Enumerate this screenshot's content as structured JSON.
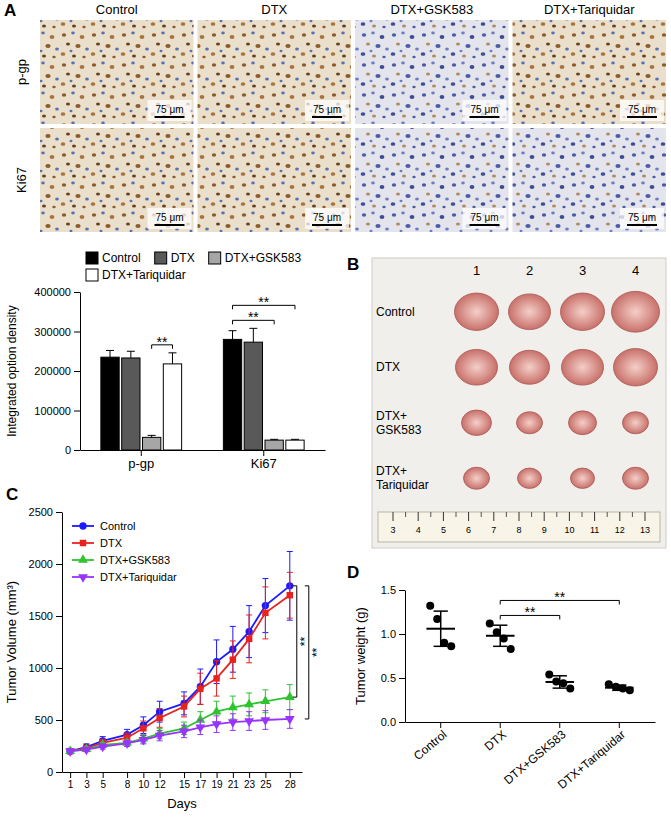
{
  "images": {
    "panel": "A",
    "columns": [
      "Control",
      "DTX",
      "DTX+GSK583",
      "DTX+Tariquidar"
    ],
    "rows": [
      "p-gp",
      "Ki67"
    ],
    "scale_bar": "75 μm"
  },
  "photo": {
    "panel": "B",
    "columns": [
      "1",
      "2",
      "3",
      "4"
    ],
    "rows": [
      "Control",
      "DTX",
      "DTX+GSK583",
      "DTX+Tariquidar"
    ],
    "ruler": [
      3,
      4,
      5,
      6,
      7,
      8,
      9,
      10,
      11,
      12,
      13
    ]
  },
  "chart_data": [
    {
      "type": "bar",
      "ylabel": "Integrated option density",
      "categories": [
        "p-gp",
        "Ki67"
      ],
      "series": [
        {
          "name": "Control",
          "color": "#000000",
          "values": [
            235000,
            280000
          ],
          "errors": [
            17000,
            22000
          ]
        },
        {
          "name": "DTX",
          "color": "#595959",
          "values": [
            233000,
            273000
          ],
          "errors": [
            17000,
            35000
          ]
        },
        {
          "name": "DTX+GSK583",
          "color": "#a6a6a6",
          "values": [
            32000,
            25000
          ],
          "errors": [
            5000,
            2000
          ]
        },
        {
          "name": "DTX+Tariquidar",
          "color": "#ffffff",
          "values": [
            218000,
            25000
          ],
          "errors": [
            28000,
            2000
          ]
        }
      ],
      "ylim": [
        0,
        400000
      ],
      "yticks": [
        0,
        100000,
        200000,
        300000,
        400000
      ],
      "legend": "top",
      "annotations": [
        {
          "text": "**",
          "category": "p-gp",
          "between": [
            "DTX+GSK583",
            "DTX+Tariquidar"
          ]
        },
        {
          "text": "**",
          "category": "Ki67",
          "between": [
            "Control",
            "DTX+GSK583"
          ]
        },
        {
          "text": "**",
          "category": "Ki67",
          "between": [
            "Control",
            "DTX+Tariquidar"
          ]
        }
      ]
    },
    {
      "type": "line",
      "panel": "C",
      "xlabel": "Days",
      "ylabel": "Tumor Volume (mm³)",
      "x": [
        1,
        3,
        5,
        8,
        10,
        12,
        15,
        17,
        19,
        21,
        23,
        25,
        28
      ],
      "xlim": [
        0,
        29.5
      ],
      "xticks": [
        1,
        3,
        5,
        8,
        10,
        12,
        15,
        17,
        19,
        21,
        23,
        25,
        28
      ],
      "ylim": [
        0,
        2500
      ],
      "yticks": [
        0,
        500,
        1000,
        1500,
        2000,
        2500
      ],
      "legend": "top-left",
      "series": [
        {
          "name": "Control",
          "color": "#1a1aff",
          "marker": "circle",
          "values": [
            200,
            240,
            300,
            360,
            450,
            580,
            660,
            820,
            1060,
            1180,
            1350,
            1600,
            1790
          ],
          "errors": [
            20,
            30,
            40,
            50,
            80,
            100,
            110,
            170,
            210,
            220,
            250,
            260,
            330
          ]
        },
        {
          "name": "DTX",
          "color": "#e8221d",
          "marker": "square",
          "values": [
            200,
            230,
            280,
            330,
            420,
            520,
            630,
            800,
            900,
            1080,
            1280,
            1530,
            1700
          ],
          "errors": [
            20,
            25,
            35,
            45,
            70,
            90,
            100,
            150,
            170,
            180,
            230,
            250,
            220
          ]
        },
        {
          "name": "DTX+GSK583",
          "color": "#2fc42f",
          "marker": "triangle",
          "values": [
            200,
            220,
            260,
            280,
            320,
            370,
            420,
            500,
            580,
            620,
            650,
            680,
            720
          ],
          "errors": [
            15,
            20,
            25,
            30,
            40,
            50,
            60,
            80,
            100,
            110,
            110,
            110,
            120
          ]
        },
        {
          "name": "DTX+Tariquidar",
          "color": "#9933ff",
          "marker": "triangle-down",
          "values": [
            200,
            215,
            245,
            275,
            310,
            350,
            390,
            430,
            460,
            480,
            490,
            500,
            510
          ],
          "errors": [
            15,
            20,
            25,
            30,
            40,
            50,
            60,
            70,
            80,
            80,
            90,
            90,
            90
          ]
        }
      ],
      "annotations": [
        {
          "text": "**",
          "between": [
            "Control",
            "DTX+GSK583"
          ]
        },
        {
          "text": "**",
          "between": [
            "Control",
            "DTX+Tariquidar"
          ]
        }
      ]
    },
    {
      "type": "dot",
      "panel": "D",
      "ylabel": "Tumor weight (g)",
      "color": "#000000",
      "categories": [
        "Control",
        "DTX",
        "DTX+GSK583",
        "DTX+Tariquidar"
      ],
      "points": [
        [
          1.32,
          1.17,
          0.9,
          0.86
        ],
        [
          1.12,
          1.02,
          0.95,
          0.83
        ],
        [
          0.54,
          0.46,
          0.44,
          0.38
        ],
        [
          0.43,
          0.4,
          0.38,
          0.36
        ]
      ],
      "mean": [
        1.06,
        0.98,
        0.455,
        0.39
      ],
      "sd": [
        0.2,
        0.12,
        0.07,
        0.03
      ],
      "ylim": [
        0,
        1.5
      ],
      "yticks": [
        {
          "value": 0,
          "label": "0.0"
        },
        {
          "value": 0.5,
          "label": "0.5"
        },
        {
          "value": 1,
          "label": "1.0"
        },
        {
          "value": 1.5,
          "label": "1.5"
        }
      ],
      "annotations": [
        {
          "text": "**",
          "between": [
            "DTX",
            "DTX+GSK583"
          ]
        },
        {
          "text": "**",
          "between": [
            "DTX",
            "DTX+Tariquidar"
          ]
        }
      ]
    }
  ]
}
